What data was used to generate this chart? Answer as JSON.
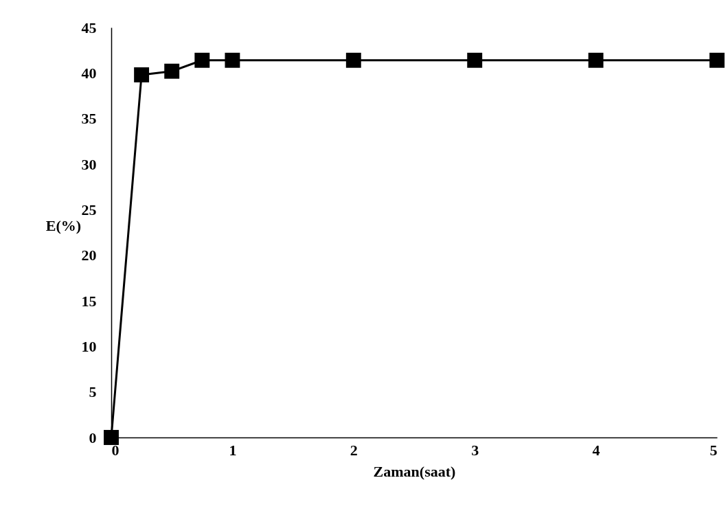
{
  "chart_data": {
    "type": "line",
    "xlabel": "Zaman(saat)",
    "ylabel": "E(%)",
    "x": [
      0,
      0.25,
      0.5,
      0.75,
      1,
      2,
      3,
      4,
      5
    ],
    "series": [
      {
        "color": "#000000",
        "values": [
          0,
          39.8,
          40.2,
          41.4,
          41.4,
          41.4,
          41.4,
          41.4,
          41.4
        ]
      }
    ],
    "xlim": [
      0,
      5
    ],
    "xticks": [
      0,
      1,
      2,
      3,
      4,
      5
    ],
    "ylim": [
      0,
      45
    ],
    "yticks": [
      0,
      5,
      10,
      15,
      20,
      25,
      30,
      35,
      40,
      45
    ],
    "grid": false,
    "legend": false,
    "marker": "square",
    "line_style": "solid"
  }
}
